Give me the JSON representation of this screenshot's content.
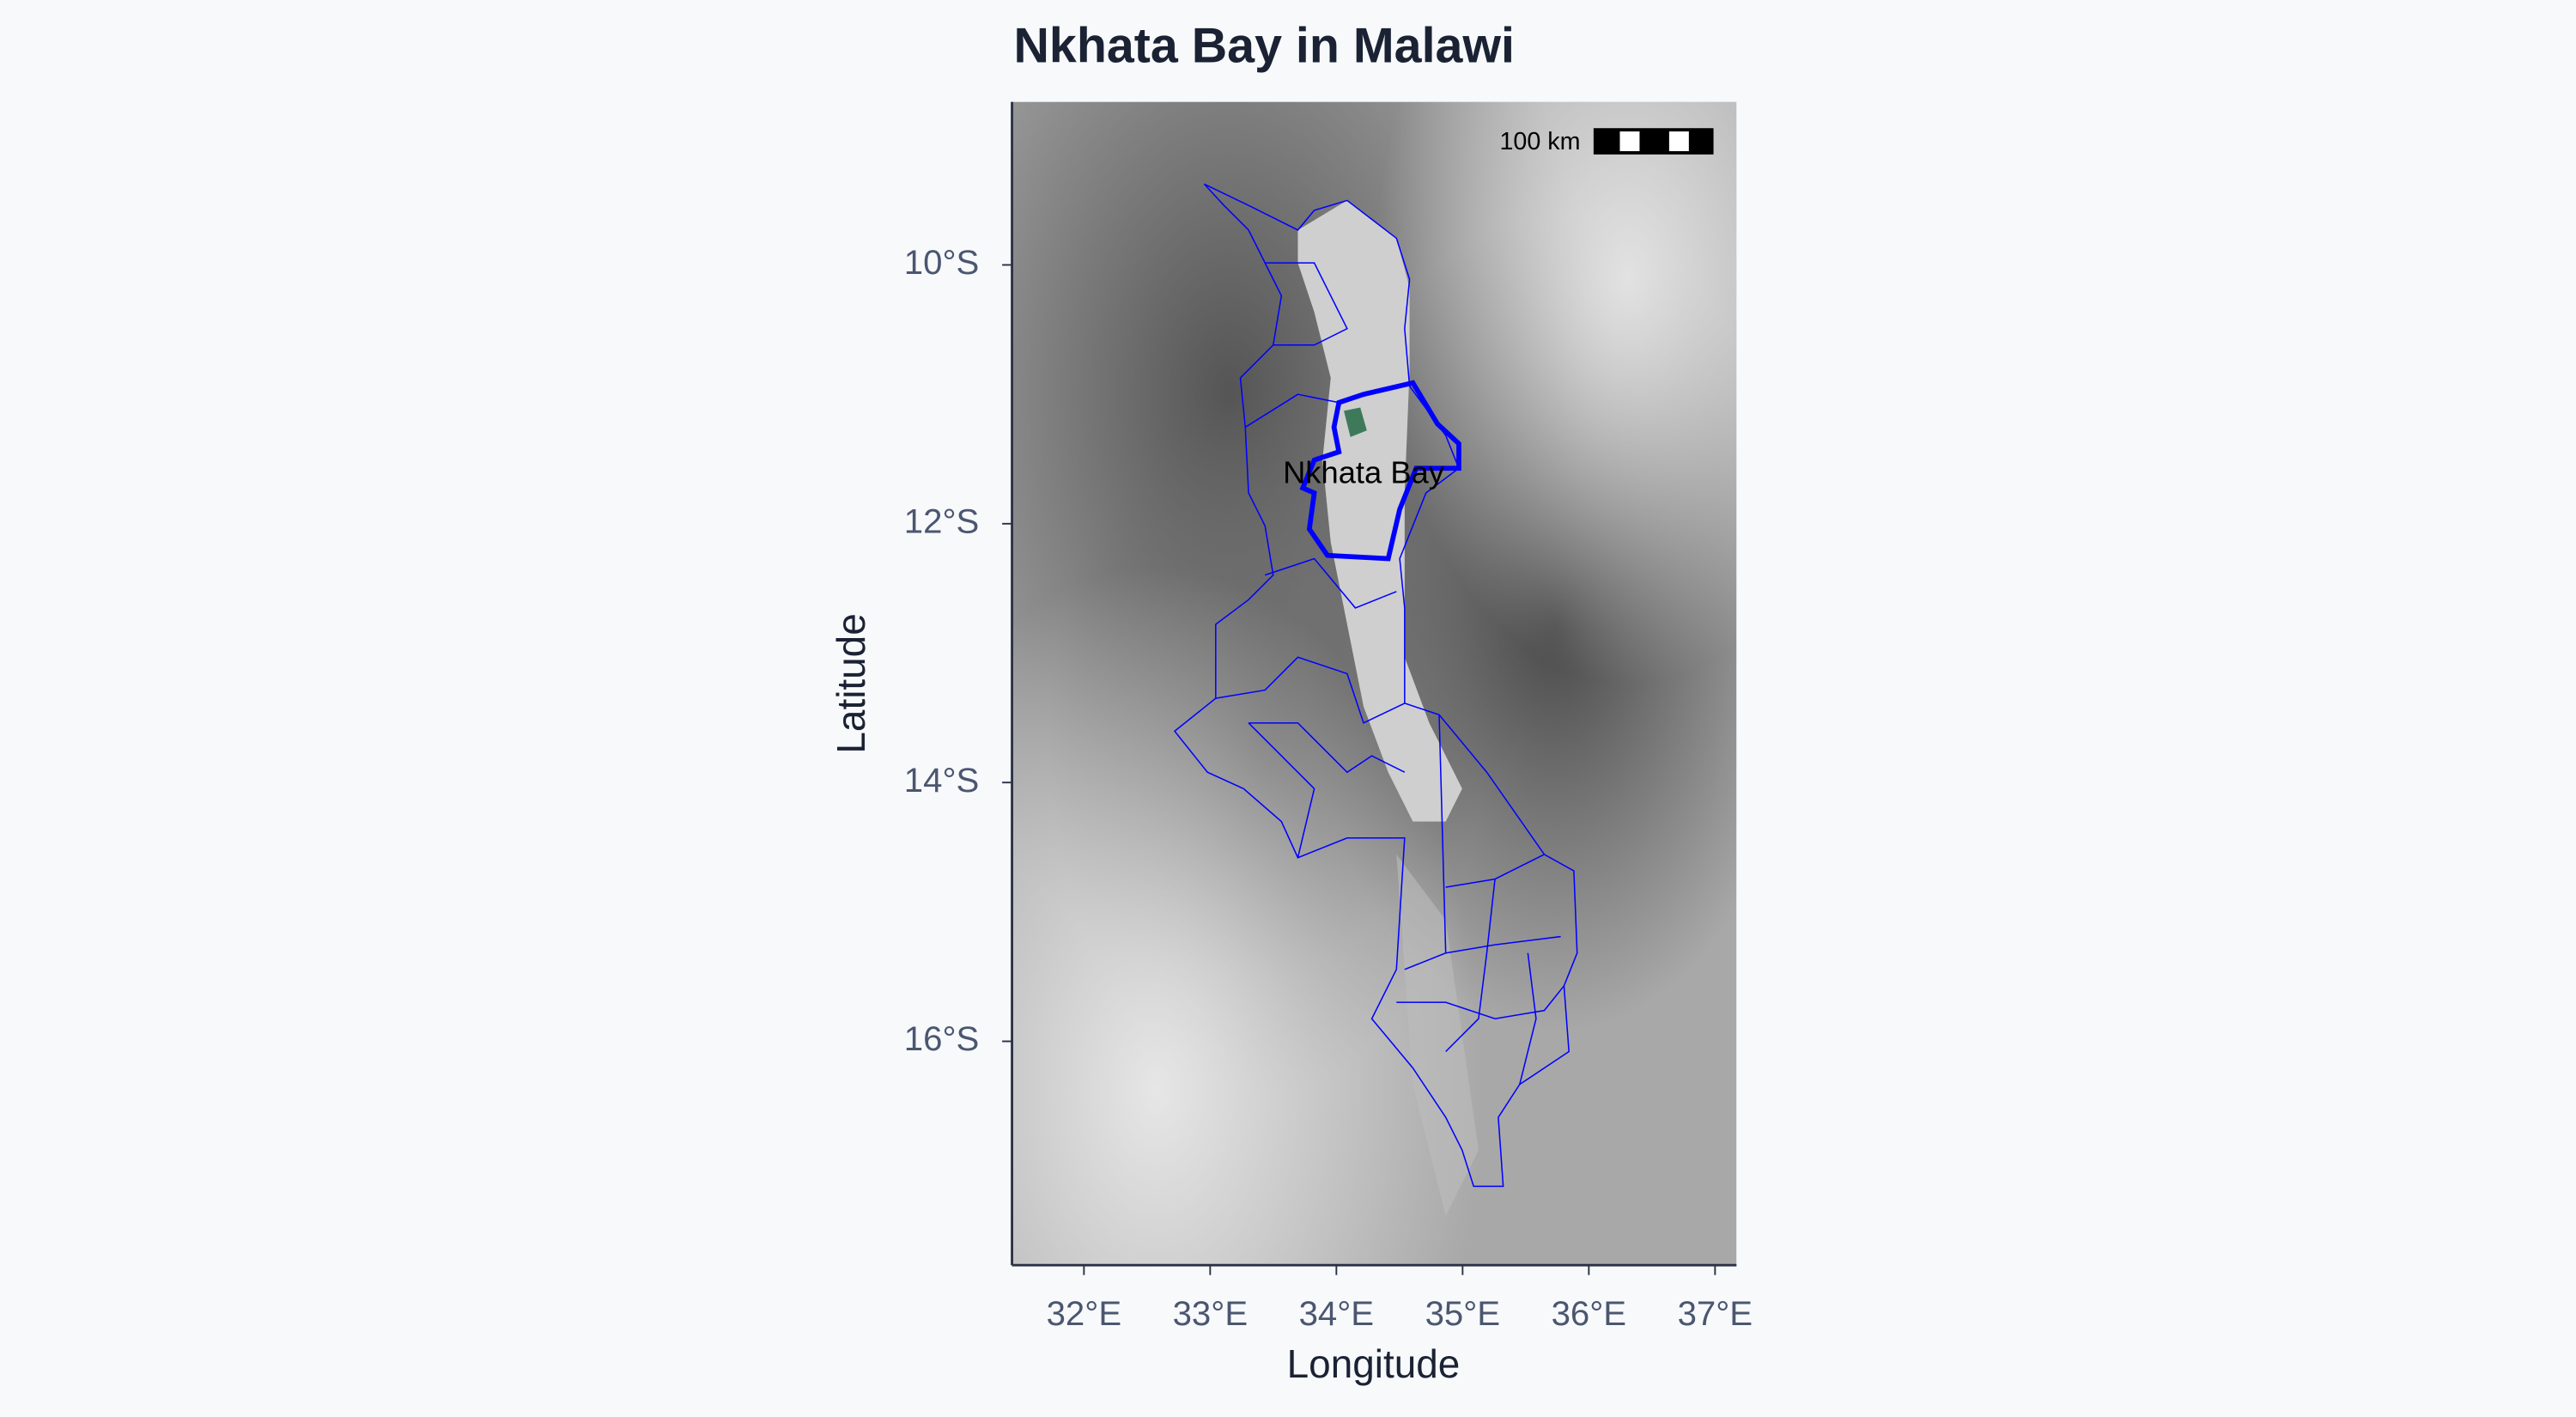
{
  "chart_data": {
    "type": "map",
    "title": "Nkhata Bay in Malawi",
    "x_label": "Longitude",
    "y_label": "Latitude",
    "xlim": [
      31.43,
      37.17
    ],
    "ylim": [
      -17.73,
      -8.74
    ],
    "xticks": [
      {
        "value": 32,
        "label": "32°E"
      },
      {
        "value": 33,
        "label": "33°E"
      },
      {
        "value": 34,
        "label": "34°E"
      },
      {
        "value": 35,
        "label": "35°E"
      },
      {
        "value": 36,
        "label": "36°E"
      },
      {
        "value": 37,
        "label": "37°E"
      }
    ],
    "yticks": [
      {
        "value": -10,
        "label": "10°S"
      },
      {
        "value": -12,
        "label": "12°S"
      },
      {
        "value": -14,
        "label": "14°S"
      },
      {
        "value": -16,
        "label": "16°S"
      }
    ],
    "region_label": "Nkhata Bay",
    "scale_bar": "100 km",
    "boundary_color": "#0000ff"
  }
}
